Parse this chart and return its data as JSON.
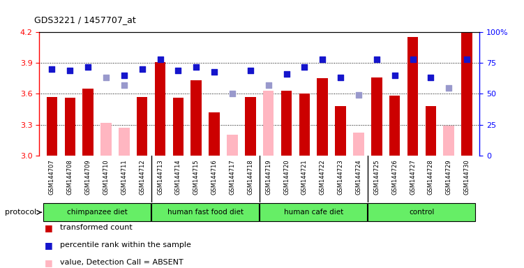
{
  "title": "GDS3221 / 1457707_at",
  "samples": [
    "GSM144707",
    "GSM144708",
    "GSM144709",
    "GSM144710",
    "GSM144711",
    "GSM144712",
    "GSM144713",
    "GSM144714",
    "GSM144715",
    "GSM144716",
    "GSM144717",
    "GSM144718",
    "GSM144719",
    "GSM144720",
    "GSM144721",
    "GSM144722",
    "GSM144723",
    "GSM144724",
    "GSM144725",
    "GSM144726",
    "GSM144727",
    "GSM144728",
    "GSM144729",
    "GSM144730"
  ],
  "red_values": [
    3.57,
    3.56,
    3.65,
    null,
    null,
    3.57,
    3.91,
    3.56,
    3.73,
    3.42,
    null,
    3.57,
    null,
    3.63,
    3.6,
    3.75,
    3.48,
    null,
    3.76,
    3.58,
    4.15,
    3.48,
    null,
    4.2
  ],
  "pink_values": [
    null,
    null,
    null,
    3.32,
    3.27,
    null,
    null,
    null,
    null,
    null,
    3.2,
    null,
    3.63,
    null,
    null,
    null,
    null,
    3.22,
    null,
    null,
    null,
    null,
    3.29,
    null
  ],
  "blue_values": [
    70,
    69,
    72,
    null,
    65,
    70,
    78,
    69,
    72,
    68,
    null,
    69,
    null,
    66,
    72,
    78,
    63,
    null,
    78,
    65,
    78,
    63,
    null,
    78
  ],
  "light_blue_values": [
    null,
    null,
    null,
    63,
    57,
    null,
    null,
    null,
    null,
    null,
    50,
    null,
    57,
    null,
    null,
    null,
    null,
    49,
    null,
    null,
    null,
    null,
    55,
    null
  ],
  "groups": [
    {
      "label": "chimpanzee diet",
      "start": 0,
      "end": 5
    },
    {
      "label": "human fast food diet",
      "start": 6,
      "end": 11
    },
    {
      "label": "human cafe diet",
      "start": 12,
      "end": 17
    },
    {
      "label": "control",
      "start": 18,
      "end": 23
    }
  ],
  "ylim_left": [
    3.0,
    4.2
  ],
  "ylim_right": [
    0,
    100
  ],
  "yticks_left": [
    3.0,
    3.3,
    3.6,
    3.9,
    4.2
  ],
  "yticks_right": [
    0,
    25,
    50,
    75,
    100
  ],
  "bar_width": 0.6,
  "red_color": "#CC0000",
  "pink_color": "#FFB6C1",
  "blue_color": "#1515CC",
  "light_blue_color": "#9999CC",
  "group_color": "#66EE66",
  "xlabel_bg": "#DCDCDC"
}
